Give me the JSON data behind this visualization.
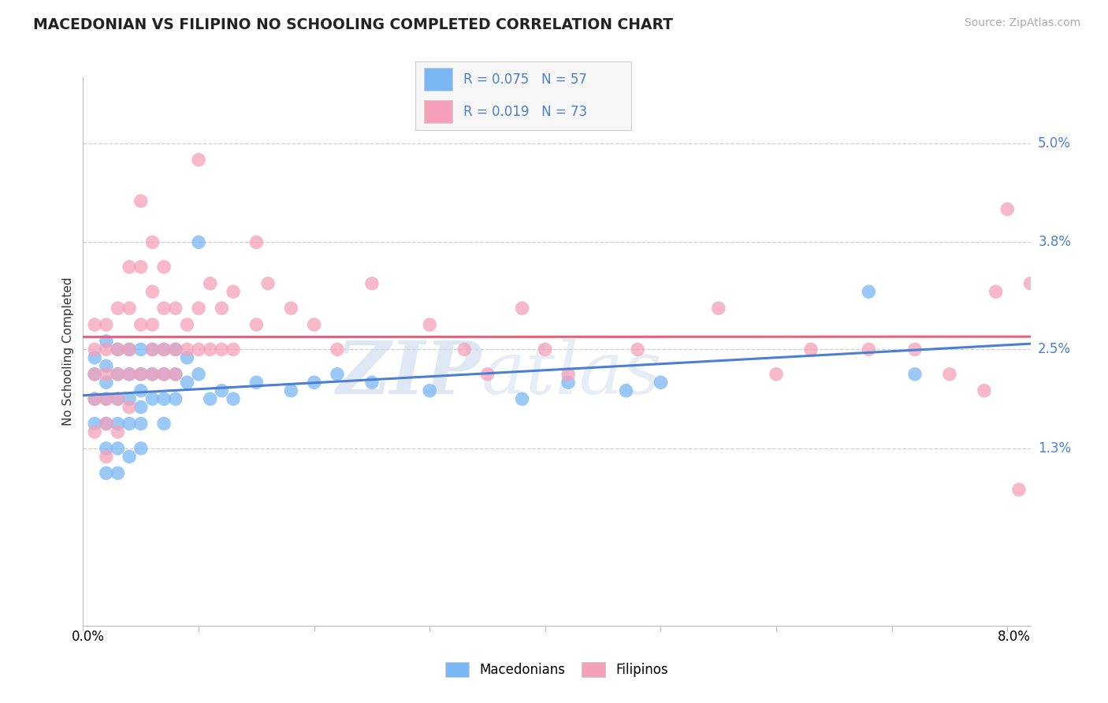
{
  "title": "MACEDONIAN VS FILIPINO NO SCHOOLING COMPLETED CORRELATION CHART",
  "source_text": "Source: ZipAtlas.com",
  "ylabel": "No Schooling Completed",
  "ytick_vals": [
    0.013,
    0.025,
    0.038,
    0.05
  ],
  "ytick_labels": [
    "1.3%",
    "2.5%",
    "3.8%",
    "5.0%"
  ],
  "xlim": [
    0.0,
    0.082
  ],
  "ylim": [
    -0.0085,
    0.058
  ],
  "legend_R1": "R = 0.075",
  "legend_N1": "N = 57",
  "legend_R2": "R = 0.019",
  "legend_N2": "N = 73",
  "macedonian_color": "#7ab8f5",
  "filipino_color": "#f5a0b8",
  "macedonian_line_color": "#4a7fd4",
  "filipino_line_color": "#e8607a",
  "macedonian_x": [
    0.001,
    0.001,
    0.001,
    0.001,
    0.002,
    0.002,
    0.002,
    0.002,
    0.002,
    0.002,
    0.002,
    0.003,
    0.003,
    0.003,
    0.003,
    0.003,
    0.003,
    0.004,
    0.004,
    0.004,
    0.004,
    0.004,
    0.005,
    0.005,
    0.005,
    0.005,
    0.005,
    0.005,
    0.006,
    0.006,
    0.006,
    0.007,
    0.007,
    0.007,
    0.007,
    0.008,
    0.008,
    0.008,
    0.009,
    0.009,
    0.01,
    0.01,
    0.011,
    0.012,
    0.013,
    0.015,
    0.018,
    0.02,
    0.022,
    0.025,
    0.03,
    0.038,
    0.042,
    0.047,
    0.05,
    0.068,
    0.072
  ],
  "macedonian_y": [
    0.024,
    0.022,
    0.019,
    0.016,
    0.026,
    0.023,
    0.021,
    0.019,
    0.016,
    0.013,
    0.01,
    0.025,
    0.022,
    0.019,
    0.016,
    0.013,
    0.01,
    0.025,
    0.022,
    0.019,
    0.016,
    0.012,
    0.025,
    0.022,
    0.02,
    0.018,
    0.016,
    0.013,
    0.025,
    0.022,
    0.019,
    0.025,
    0.022,
    0.019,
    0.016,
    0.025,
    0.022,
    0.019,
    0.024,
    0.021,
    0.038,
    0.022,
    0.019,
    0.02,
    0.019,
    0.021,
    0.02,
    0.021,
    0.022,
    0.021,
    0.02,
    0.019,
    0.021,
    0.02,
    0.021,
    0.032,
    0.022
  ],
  "filipino_x": [
    0.001,
    0.001,
    0.001,
    0.001,
    0.001,
    0.002,
    0.002,
    0.002,
    0.002,
    0.002,
    0.002,
    0.003,
    0.003,
    0.003,
    0.003,
    0.003,
    0.004,
    0.004,
    0.004,
    0.004,
    0.004,
    0.005,
    0.005,
    0.005,
    0.005,
    0.006,
    0.006,
    0.006,
    0.006,
    0.006,
    0.007,
    0.007,
    0.007,
    0.007,
    0.008,
    0.008,
    0.008,
    0.009,
    0.009,
    0.01,
    0.01,
    0.01,
    0.011,
    0.011,
    0.012,
    0.012,
    0.013,
    0.013,
    0.015,
    0.015,
    0.016,
    0.018,
    0.02,
    0.022,
    0.025,
    0.03,
    0.033,
    0.035,
    0.038,
    0.04,
    0.042,
    0.048,
    0.055,
    0.06,
    0.063,
    0.068,
    0.072,
    0.075,
    0.078,
    0.079,
    0.08,
    0.081,
    0.082
  ],
  "filipino_y": [
    0.028,
    0.025,
    0.022,
    0.019,
    0.015,
    0.028,
    0.025,
    0.022,
    0.019,
    0.016,
    0.012,
    0.03,
    0.025,
    0.022,
    0.019,
    0.015,
    0.035,
    0.03,
    0.025,
    0.022,
    0.018,
    0.043,
    0.035,
    0.028,
    0.022,
    0.038,
    0.032,
    0.028,
    0.025,
    0.022,
    0.035,
    0.03,
    0.025,
    0.022,
    0.03,
    0.025,
    0.022,
    0.028,
    0.025,
    0.048,
    0.03,
    0.025,
    0.033,
    0.025,
    0.03,
    0.025,
    0.032,
    0.025,
    0.038,
    0.028,
    0.033,
    0.03,
    0.028,
    0.025,
    0.033,
    0.028,
    0.025,
    0.022,
    0.03,
    0.025,
    0.022,
    0.025,
    0.03,
    0.022,
    0.025,
    0.025,
    0.025,
    0.022,
    0.02,
    0.032,
    0.042,
    0.008,
    0.033
  ],
  "watermark_zip": "ZIP",
  "watermark_atlas": "atlas",
  "background_color": "#ffffff",
  "grid_color": "#d0d0d0",
  "legend_box_color": "#f7f7f7",
  "legend_border_color": "#cccccc"
}
